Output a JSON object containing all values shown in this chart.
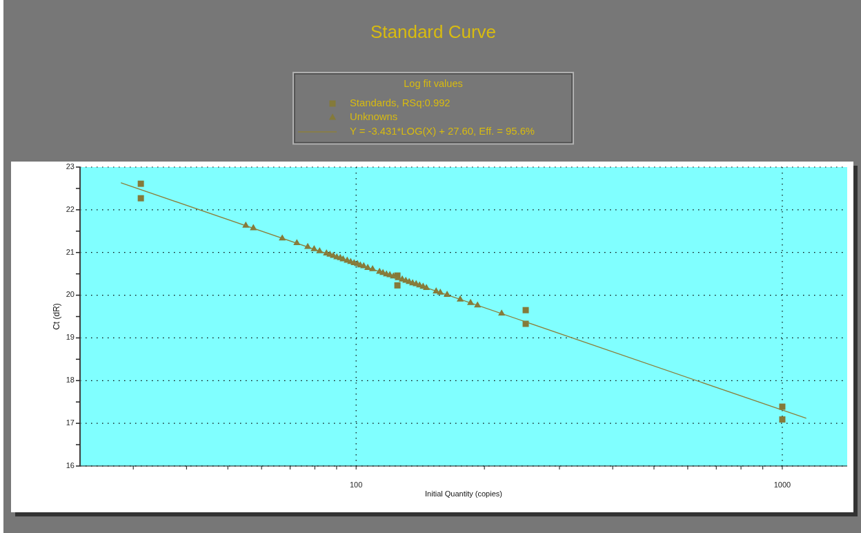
{
  "chart_data": {
    "type": "scatter",
    "title": "Standard Curve",
    "xlabel": "Initial Quantity (copies)",
    "ylabel": "Ct (dR)",
    "legend_title": "Log fit values",
    "legend": "top",
    "log": "x",
    "grid": true,
    "xlim": [
      22.5,
      1420
    ],
    "xticks": [
      {
        "value": 30,
        "label": null
      },
      {
        "value": 40,
        "label": null
      },
      {
        "value": 50,
        "label": null
      },
      {
        "value": 60,
        "label": null
      },
      {
        "value": 70,
        "label": null
      },
      {
        "value": 80,
        "label": null
      },
      {
        "value": 90,
        "label": null
      },
      100,
      {
        "value": 200,
        "label": null
      },
      {
        "value": 300,
        "label": null
      },
      {
        "value": 400,
        "label": null
      },
      {
        "value": 500,
        "label": null
      },
      {
        "value": 600,
        "label": null
      },
      {
        "value": 700,
        "label": null
      },
      {
        "value": 800,
        "label": null
      },
      {
        "value": 900,
        "label": null
      },
      1000
    ],
    "ylim": [
      16,
      23
    ],
    "yticks": [
      16,
      {
        "value": 16.5,
        "label": null
      },
      17,
      {
        "value": 17.5,
        "label": null
      },
      18,
      {
        "value": 18.5,
        "label": null
      },
      19,
      {
        "value": 19.5,
        "label": null
      },
      20,
      {
        "value": 20.5,
        "label": null
      },
      21,
      {
        "value": 21.5,
        "label": null
      },
      22,
      {
        "value": 22.5,
        "label": null
      },
      23
    ],
    "series": [
      {
        "name": "Standards, RSq:0.992",
        "marker": "square",
        "color": "#847a3a",
        "x": [
          31.25,
          31.25,
          125,
          125,
          250,
          250,
          1000,
          1000
        ],
        "values": [
          22.61,
          22.27,
          20.46,
          20.23,
          19.65,
          19.33,
          17.39,
          17.09
        ]
      },
      {
        "name": "Unknowns",
        "marker": "triangle",
        "color": "#847a3a",
        "x": [
          55.1,
          57.4,
          67.1,
          72.6,
          77.0,
          79.7,
          82.1,
          85.2,
          86.8,
          88.4,
          90.1,
          91.8,
          93.2,
          95.3,
          97.1,
          98.9,
          100.7,
          102.3,
          104.2,
          106.5,
          109.3,
          113.5,
          115.6,
          117.8,
          120.0,
          122.3,
          125.5,
          128.3,
          130.8,
          133.2,
          135.7,
          138.3,
          140.9,
          143.6,
          146.2,
          154.1,
          157.6,
          163.5,
          175.5,
          185.6,
          192.7,
          219.5
        ],
        "values": [
          21.63,
          21.57,
          21.33,
          21.22,
          21.13,
          21.08,
          21.03,
          20.98,
          20.95,
          20.92,
          20.89,
          20.87,
          20.84,
          20.81,
          20.78,
          20.75,
          20.73,
          20.7,
          20.68,
          20.64,
          20.61,
          20.55,
          20.52,
          20.49,
          20.47,
          20.44,
          20.4,
          20.37,
          20.34,
          20.31,
          20.28,
          20.26,
          20.23,
          20.2,
          20.17,
          20.09,
          20.06,
          20.01,
          19.9,
          19.82,
          19.76,
          19.57
        ]
      },
      {
        "name": "Y = -3.431*LOG(X) + 27.60, Eff. = 95.6%",
        "type": "line",
        "marker": "none",
        "color": "#8c7f3c",
        "x": [
          28.1,
          1136
        ],
        "values": [
          22.63,
          17.12
        ]
      }
    ]
  }
}
